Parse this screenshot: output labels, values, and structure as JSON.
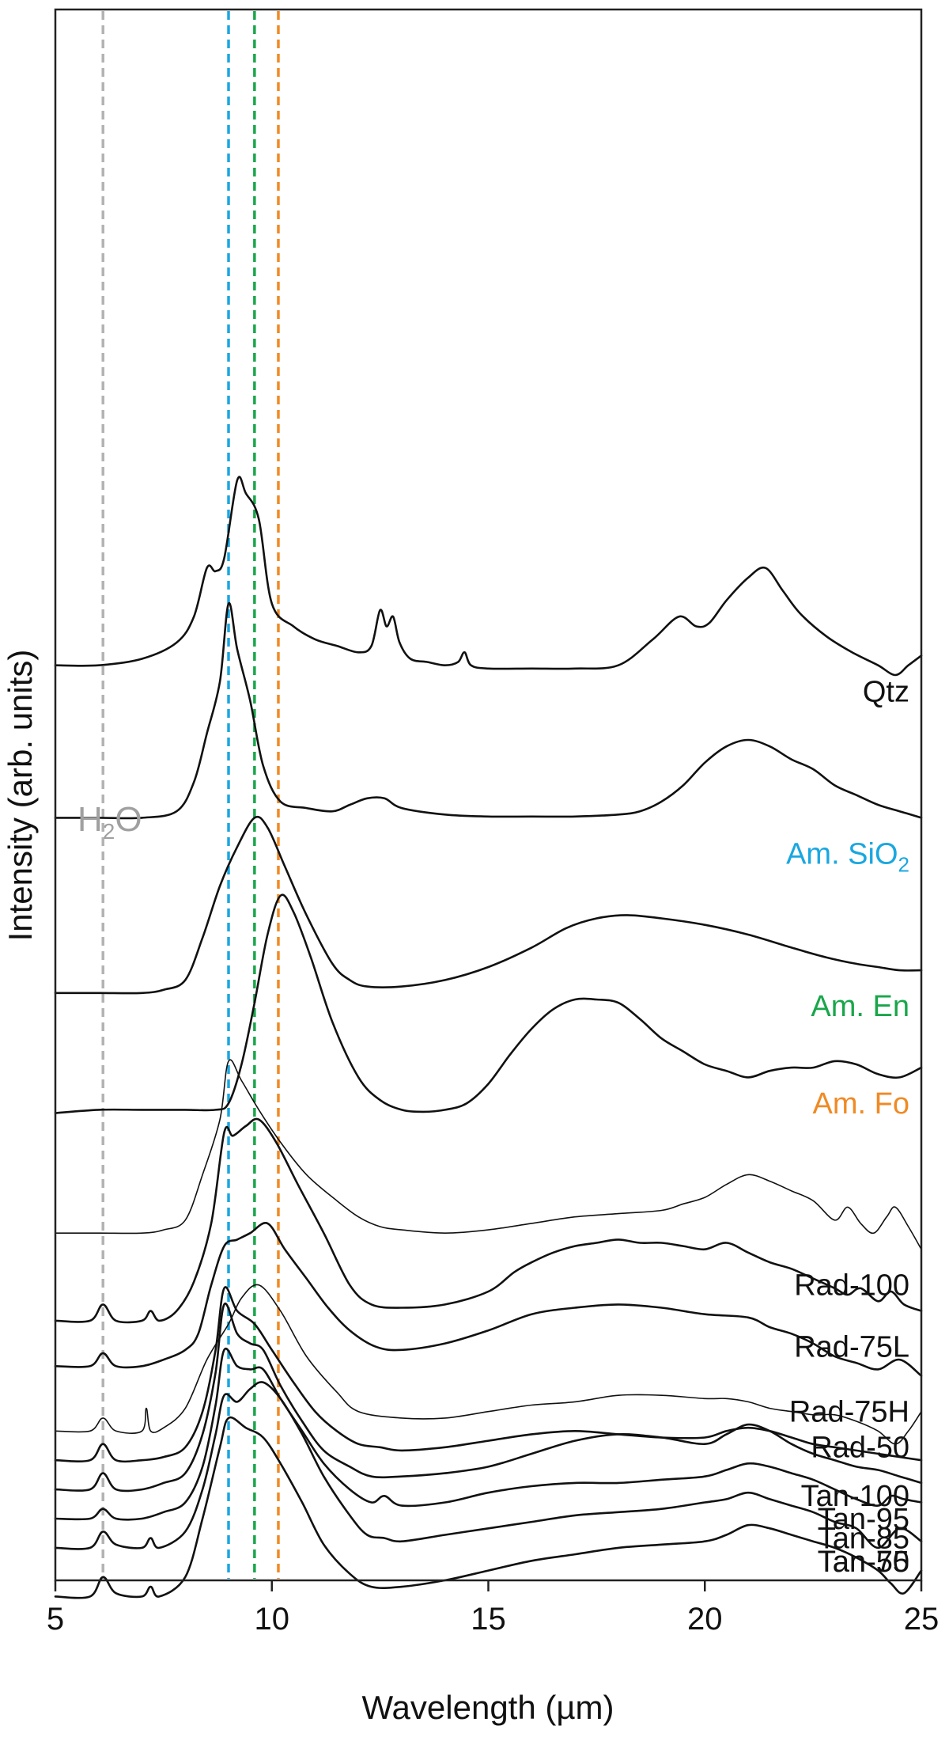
{
  "chart_data": {
    "type": "line",
    "title": "",
    "xlabel": "Wavelength (µm)",
    "ylabel": "Intensity (arb. units)",
    "xlim": [
      5,
      25
    ],
    "xticks": [
      5,
      10,
      15,
      20,
      25
    ],
    "xtick_labels": [
      "5",
      "10",
      "15",
      "20",
      "25"
    ],
    "yticks_shown": false,
    "grid": false,
    "reference_lines": [
      {
        "name": "H2O",
        "x": 6.1,
        "color": "#b3b3b3"
      },
      {
        "name": "Am. SiO2",
        "x": 9.0,
        "color": "#1aa7e0"
      },
      {
        "name": "Am. En",
        "x": 9.6,
        "color": "#1aa64b"
      },
      {
        "name": "Am. Fo",
        "x": 10.15,
        "color": "#f08a24"
      }
    ],
    "h2o_annotation": {
      "base": "H",
      "sub": "2",
      "rest": "O"
    },
    "series": [
      {
        "name": "Qtz",
        "label": "Qtz",
        "label_color": "#111111",
        "stroke": 2.6,
        "offset": 13.5,
        "x": [
          5,
          6,
          7,
          7.8,
          8.2,
          8.5,
          8.7,
          8.9,
          9.2,
          9.4,
          9.7,
          10,
          10.5,
          11,
          11.5,
          12,
          12.3,
          12.5,
          12.65,
          12.8,
          12.95,
          13.2,
          13.6,
          14,
          14.3,
          14.45,
          14.6,
          15,
          16,
          17,
          18,
          18.8,
          19.4,
          19.8,
          20.1,
          20.5,
          21,
          21.4,
          21.8,
          22.2,
          22.8,
          23.4,
          24,
          24.4,
          24.7,
          25
        ],
        "y": [
          0.15,
          0.15,
          0.25,
          0.5,
          0.9,
          1.65,
          1.6,
          1.8,
          3.0,
          2.8,
          2.4,
          1.1,
          0.75,
          0.55,
          0.45,
          0.35,
          0.45,
          1.0,
          0.75,
          0.9,
          0.5,
          0.25,
          0.2,
          0.15,
          0.2,
          0.35,
          0.15,
          0.1,
          0.1,
          0.1,
          0.15,
          0.55,
          0.9,
          0.75,
          0.8,
          1.15,
          1.5,
          1.65,
          1.3,
          0.95,
          0.6,
          0.35,
          0.15,
          0.0,
          0.15,
          0.3
        ]
      },
      {
        "name": "Am. SiO2",
        "label": "Am. SiO",
        "label_sub": "2",
        "label_color": "#1aa7e0",
        "stroke": 2.6,
        "offset": 11.3,
        "x": [
          5,
          6,
          7,
          7.8,
          8.2,
          8.5,
          8.8,
          9.0,
          9.2,
          9.5,
          9.8,
          10.2,
          10.8,
          11.4,
          11.8,
          12.2,
          12.6,
          13,
          14,
          15,
          16,
          17,
          18,
          18.5,
          19,
          19.5,
          20,
          20.5,
          21,
          21.5,
          22,
          22.5,
          23,
          23.5,
          24,
          24.5,
          25
        ],
        "y": [
          0.0,
          0.0,
          0.0,
          0.1,
          0.55,
          1.3,
          2.1,
          3.3,
          2.6,
          1.8,
          0.8,
          0.25,
          0.15,
          0.1,
          0.2,
          0.3,
          0.3,
          0.15,
          0.05,
          0.02,
          0.02,
          0.02,
          0.05,
          0.1,
          0.25,
          0.5,
          0.85,
          1.1,
          1.2,
          1.1,
          0.9,
          0.75,
          0.5,
          0.35,
          0.2,
          0.1,
          0.0
        ]
      },
      {
        "name": "Am. En",
        "label": "Am. En",
        "label_color": "#1aa64b",
        "stroke": 2.6,
        "offset": 8.55,
        "x": [
          5,
          6,
          7,
          7.5,
          8,
          8.4,
          8.8,
          9.2,
          9.6,
          9.9,
          10.3,
          10.8,
          11.4,
          11.8,
          12.2,
          13,
          14,
          15,
          16,
          16.8,
          17.5,
          18.2,
          19,
          20,
          21,
          22,
          22.8,
          23.5,
          24,
          24.5,
          25
        ],
        "y": [
          0.05,
          0.05,
          0.05,
          0.1,
          0.25,
          0.9,
          1.7,
          2.3,
          2.75,
          2.6,
          2.0,
          1.25,
          0.5,
          0.25,
          0.15,
          0.15,
          0.25,
          0.45,
          0.75,
          1.05,
          1.2,
          1.25,
          1.2,
          1.1,
          0.95,
          0.75,
          0.6,
          0.5,
          0.45,
          0.4,
          0.4
        ]
      },
      {
        "name": "Am. Fo",
        "label": "Am. Fo",
        "label_color": "#f08a24",
        "stroke": 2.6,
        "offset": 6.75,
        "x": [
          5,
          6,
          7,
          8,
          8.7,
          9.0,
          9.3,
          9.6,
          9.9,
          10.2,
          10.5,
          10.9,
          11.4,
          12,
          12.5,
          13,
          13.5,
          14,
          14.5,
          15,
          15.5,
          16,
          16.5,
          17,
          17.5,
          18,
          18.5,
          19,
          19.5,
          20,
          20.5,
          21,
          21.5,
          22,
          22.5,
          23,
          23.5,
          24,
          24.5,
          25
        ],
        "y": [
          0.0,
          0.05,
          0.05,
          0.05,
          0.05,
          0.15,
          0.75,
          1.7,
          2.75,
          3.35,
          3.1,
          2.4,
          1.4,
          0.55,
          0.2,
          0.05,
          0.02,
          0.05,
          0.15,
          0.45,
          0.9,
          1.3,
          1.6,
          1.75,
          1.75,
          1.7,
          1.45,
          1.15,
          0.95,
          0.75,
          0.65,
          0.55,
          0.65,
          0.7,
          0.7,
          0.8,
          0.75,
          0.6,
          0.55,
          0.7
        ]
      },
      {
        "name": "Rad-100",
        "label": "Rad-100",
        "label_color": "#111111",
        "stroke": 1.6,
        "offset": 4.85,
        "x": [
          5,
          6,
          7,
          7.5,
          8,
          8.4,
          8.8,
          9.0,
          9.3,
          9.7,
          10.2,
          10.8,
          11.5,
          12,
          12.5,
          13,
          14,
          15,
          16,
          17,
          18,
          19,
          19.5,
          20,
          20.5,
          21,
          21.5,
          22,
          22.5,
          23,
          23.3,
          23.6,
          23.9,
          24.2,
          24.4,
          24.7,
          25
        ],
        "y": [
          0.05,
          0.05,
          0.05,
          0.1,
          0.25,
          0.95,
          1.8,
          2.7,
          2.4,
          1.95,
          1.45,
          0.95,
          0.55,
          0.3,
          0.15,
          0.1,
          0.05,
          0.1,
          0.2,
          0.3,
          0.35,
          0.4,
          0.5,
          0.6,
          0.8,
          0.95,
          0.85,
          0.7,
          0.55,
          0.25,
          0.45,
          0.2,
          0.05,
          0.3,
          0.45,
          0.15,
          -0.2
        ]
      },
      {
        "name": "Rad-75L",
        "label": "Rad-75L",
        "label_color": "#111111",
        "stroke": 2.6,
        "offset": 3.55,
        "x": [
          5,
          5.8,
          6.1,
          6.4,
          7,
          7.2,
          7.4,
          7.8,
          8.2,
          8.6,
          8.9,
          9.1,
          9.4,
          9.7,
          10.1,
          10.6,
          11.2,
          11.8,
          12.3,
          13,
          14,
          15,
          15.6,
          16,
          16.5,
          17,
          17.5,
          18,
          18.5,
          19,
          19.5,
          20,
          20.5,
          21,
          21.5,
          22,
          22.5,
          23,
          23.3,
          23.6,
          24,
          24.3,
          24.6,
          25
        ],
        "y": [
          0.0,
          0.0,
          0.25,
          0.0,
          0.0,
          0.15,
          0.0,
          0.15,
          0.6,
          1.5,
          2.9,
          2.85,
          3.0,
          3.1,
          2.75,
          2.1,
          1.35,
          0.55,
          0.25,
          0.2,
          0.25,
          0.45,
          0.75,
          0.9,
          1.05,
          1.15,
          1.2,
          1.25,
          1.2,
          1.2,
          1.15,
          1.1,
          1.2,
          1.05,
          0.9,
          0.8,
          0.65,
          0.5,
          0.4,
          0.5,
          0.3,
          0.45,
          0.25,
          0.15
        ]
      },
      {
        "name": "Rad-75H",
        "label": "Rad-75H",
        "label_color": "#111111",
        "stroke": 2.6,
        "offset": 2.8,
        "x": [
          5,
          5.8,
          6.1,
          6.4,
          7,
          7.5,
          8,
          8.3,
          8.6,
          8.9,
          9.2,
          9.5,
          9.9,
          10.3,
          10.8,
          11.3,
          11.8,
          12.4,
          13,
          14,
          15,
          16,
          17,
          18,
          19,
          20,
          21,
          21.5,
          22,
          22.5,
          23,
          23.5,
          24,
          24.5,
          25
        ],
        "y": [
          0.05,
          0.05,
          0.25,
          0.05,
          0.05,
          0.15,
          0.3,
          0.55,
          1.3,
          1.9,
          2.0,
          2.1,
          2.25,
          1.85,
          1.4,
          0.95,
          0.6,
          0.35,
          0.3,
          0.4,
          0.6,
          0.85,
          0.95,
          1.0,
          0.95,
          0.85,
          0.8,
          0.65,
          0.55,
          0.4,
          0.2,
          0.1,
          0.0,
          0.15,
          -0.1
        ]
      },
      {
        "name": "Rad-50",
        "label": "Rad-50",
        "label_color": "#111111",
        "stroke": 1.6,
        "offset": 1.85,
        "x": [
          5,
          5.8,
          6.1,
          6.4,
          7,
          7.1,
          7.2,
          7.5,
          8,
          8.5,
          9.0,
          9.3,
          9.7,
          10.2,
          10.8,
          11.5,
          12,
          13,
          14,
          15,
          16,
          17,
          18,
          19,
          20,
          20.5,
          21,
          21.5,
          22,
          22.5,
          23,
          23.5,
          24,
          24.4,
          24.7,
          25
        ],
        "y": [
          0.0,
          0.0,
          0.2,
          0.0,
          0.0,
          0.35,
          0.0,
          0.05,
          0.35,
          1.1,
          1.65,
          2.05,
          2.25,
          1.85,
          1.15,
          0.6,
          0.3,
          0.2,
          0.2,
          0.3,
          0.4,
          0.45,
          0.55,
          0.55,
          0.5,
          0.5,
          0.45,
          0.35,
          0.3,
          0.25,
          0.25,
          0.15,
          0.0,
          -0.2,
          0.0,
          0.3
        ]
      },
      {
        "name": "Tan-100",
        "label": "Tan-100",
        "label_color": "#111111",
        "stroke": 2.6,
        "offset": 1.4,
        "x": [
          5,
          5.8,
          6.1,
          6.4,
          7,
          7.5,
          8,
          8.4,
          8.7,
          8.9,
          9.2,
          9.6,
          10,
          10.5,
          11,
          11.5,
          12,
          12.5,
          13,
          14,
          15,
          16,
          17,
          18,
          19,
          20,
          20.5,
          21,
          21.5,
          22,
          22.5,
          23,
          23.5,
          24,
          24.5,
          25
        ],
        "y": [
          0.0,
          0.0,
          0.25,
          0.0,
          0.0,
          0.05,
          0.2,
          0.75,
          1.7,
          2.65,
          2.3,
          2.1,
          1.7,
          1.2,
          0.75,
          0.45,
          0.25,
          0.2,
          0.15,
          0.2,
          0.3,
          0.4,
          0.45,
          0.4,
          0.35,
          0.35,
          0.45,
          0.5,
          0.45,
          0.35,
          0.25,
          0.2,
          0.15,
          0.1,
          0.05,
          0.0
        ]
      },
      {
        "name": "Tan-95",
        "label": "Tan-95",
        "label_color": "#111111",
        "stroke": 2.6,
        "offset": 0.95,
        "x": [
          5,
          5.8,
          6.1,
          6.4,
          7,
          7.5,
          8,
          8.4,
          8.7,
          8.9,
          9.2,
          9.5,
          9.8,
          10.2,
          10.7,
          11.2,
          11.8,
          12.3,
          13,
          14,
          15,
          16,
          17,
          18,
          19,
          20,
          20.5,
          21,
          21.5,
          22,
          22.5,
          23,
          23.5,
          24,
          24.5,
          25
        ],
        "y": [
          0.0,
          0.0,
          0.25,
          0.0,
          0.0,
          0.1,
          0.25,
          0.85,
          1.8,
          2.85,
          2.4,
          2.25,
          2.15,
          1.6,
          1.05,
          0.6,
          0.35,
          0.2,
          0.2,
          0.25,
          0.35,
          0.55,
          0.75,
          0.85,
          0.8,
          0.7,
          0.85,
          1.0,
          0.9,
          0.7,
          0.55,
          0.45,
          0.35,
          0.3,
          0.2,
          0.1
        ]
      },
      {
        "name": "Tan-85",
        "label": "Tan-85",
        "label_color": "#111111",
        "stroke": 2.6,
        "offset": 0.5,
        "x": [
          5,
          5.8,
          6.1,
          6.4,
          7,
          7.5,
          8,
          8.4,
          8.7,
          8.9,
          9.2,
          9.5,
          9.8,
          10.2,
          10.7,
          11.2,
          11.8,
          12.3,
          12.6,
          13,
          14,
          15,
          16,
          17,
          18,
          19,
          20,
          20.5,
          21,
          21.5,
          22,
          22.5,
          23,
          23.5,
          24,
          24.3,
          24.6,
          25
        ],
        "y": [
          0.0,
          0.0,
          0.15,
          0.0,
          0.0,
          0.1,
          0.25,
          0.8,
          1.75,
          2.6,
          2.35,
          2.3,
          2.3,
          1.85,
          1.35,
          0.85,
          0.45,
          0.25,
          0.35,
          0.2,
          0.25,
          0.4,
          0.5,
          0.55,
          0.55,
          0.6,
          0.65,
          0.75,
          0.85,
          0.8,
          0.7,
          0.6,
          0.45,
          0.3,
          0.2,
          0.35,
          0.3,
          0.25
        ]
      },
      {
        "name": "Tan-75",
        "label": "Tan-75",
        "label_color": "#111111",
        "stroke": 2.6,
        "offset": 0.05,
        "x": [
          5,
          5.8,
          6.1,
          6.4,
          7,
          7.2,
          7.4,
          8,
          8.4,
          8.7,
          8.9,
          9.2,
          9.5,
          9.8,
          10.2,
          10.7,
          11.2,
          11.8,
          12.2,
          12.6,
          13,
          14,
          15,
          16,
          17,
          18,
          19,
          20,
          20.5,
          21,
          21.5,
          22,
          22.5,
          23,
          23.5,
          24,
          24.5,
          25
        ],
        "y": [
          0.0,
          0.0,
          0.25,
          0.05,
          0.0,
          0.15,
          0.0,
          0.25,
          0.9,
          1.75,
          2.35,
          2.25,
          2.45,
          2.55,
          2.3,
          1.75,
          1.1,
          0.5,
          0.2,
          0.15,
          0.1,
          0.2,
          0.3,
          0.4,
          0.5,
          0.55,
          0.6,
          0.7,
          0.75,
          0.85,
          0.75,
          0.65,
          0.55,
          0.4,
          0.3,
          0.0,
          0.3,
          0.1
        ]
      },
      {
        "name": "Tan-50",
        "label": "Tan-50",
        "label_color": "#111111",
        "stroke": 2.6,
        "offset": -0.7,
        "x": [
          5,
          5.8,
          6.1,
          6.4,
          7,
          7.2,
          7.4,
          8,
          8.4,
          8.8,
          9.0,
          9.4,
          9.8,
          10.2,
          10.7,
          11.2,
          11.8,
          12.3,
          13,
          14,
          15,
          16,
          17,
          18,
          19,
          20,
          20.5,
          21,
          21.5,
          22,
          22.5,
          23,
          23.5,
          24,
          24.3,
          24.6,
          25
        ],
        "y": [
          0.0,
          0.0,
          0.3,
          0.05,
          0.0,
          0.15,
          0.0,
          0.3,
          1.2,
          2.3,
          2.75,
          2.6,
          2.45,
          2.05,
          1.45,
          0.8,
          0.35,
          0.15,
          0.15,
          0.25,
          0.4,
          0.55,
          0.65,
          0.75,
          0.8,
          0.85,
          0.95,
          1.1,
          1.05,
          0.95,
          0.85,
          0.75,
          0.6,
          0.4,
          0.2,
          0.05,
          0.4
        ]
      }
    ]
  }
}
